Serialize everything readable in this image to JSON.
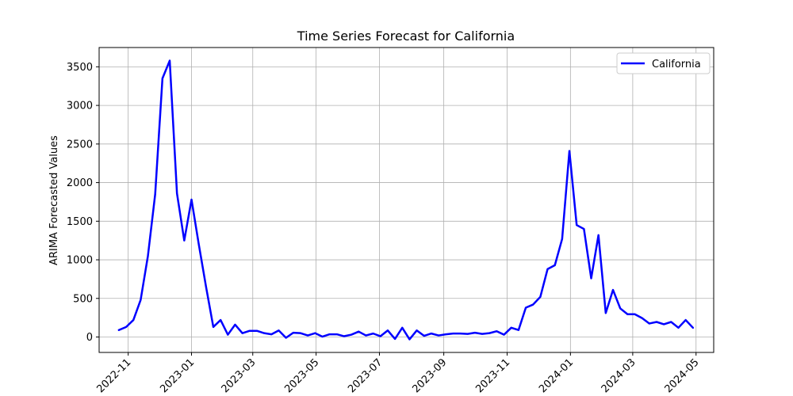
{
  "chart_data": {
    "type": "line",
    "title": "Time Series Forecast for California",
    "xlabel": "",
    "ylabel": "ARIMA Forecasted Values",
    "x_tick_labels": [
      "2022-11",
      "2023-01",
      "2023-03",
      "2023-05",
      "2023-07",
      "2023-09",
      "2023-11",
      "2024-01",
      "2024-03",
      "2024-05"
    ],
    "x_tick_dates": [
      "2022-11-01",
      "2023-01-01",
      "2023-03-01",
      "2023-05-01",
      "2023-07-01",
      "2023-09-01",
      "2023-11-01",
      "2024-01-01",
      "2024-03-01",
      "2024-05-01"
    ],
    "y_ticks": [
      0,
      500,
      1000,
      1500,
      2000,
      2500,
      3000,
      3500
    ],
    "xlim": [
      "2022-10-04",
      "2024-05-18"
    ],
    "ylim": [
      -200,
      3750
    ],
    "grid": true,
    "legend_position": "top-right",
    "series": [
      {
        "name": "California",
        "color": "#0000ff",
        "points": [
          [
            "2022-10-23",
            90
          ],
          [
            "2022-10-30",
            130
          ],
          [
            "2022-11-06",
            220
          ],
          [
            "2022-11-13",
            480
          ],
          [
            "2022-11-20",
            1050
          ],
          [
            "2022-11-27",
            1850
          ],
          [
            "2022-12-04",
            3350
          ],
          [
            "2022-12-11",
            3580
          ],
          [
            "2022-12-18",
            1860
          ],
          [
            "2022-12-25",
            1250
          ],
          [
            "2023-01-01",
            1780
          ],
          [
            "2023-01-08",
            1200
          ],
          [
            "2023-01-15",
            650
          ],
          [
            "2023-01-22",
            130
          ],
          [
            "2023-01-29",
            220
          ],
          [
            "2023-02-05",
            30
          ],
          [
            "2023-02-12",
            160
          ],
          [
            "2023-02-19",
            50
          ],
          [
            "2023-02-26",
            80
          ],
          [
            "2023-03-05",
            80
          ],
          [
            "2023-03-12",
            50
          ],
          [
            "2023-03-19",
            35
          ],
          [
            "2023-03-26",
            85
          ],
          [
            "2023-04-02",
            -10
          ],
          [
            "2023-04-09",
            55
          ],
          [
            "2023-04-16",
            50
          ],
          [
            "2023-04-23",
            20
          ],
          [
            "2023-04-30",
            50
          ],
          [
            "2023-05-07",
            5
          ],
          [
            "2023-05-14",
            35
          ],
          [
            "2023-05-21",
            35
          ],
          [
            "2023-05-28",
            10
          ],
          [
            "2023-06-04",
            30
          ],
          [
            "2023-06-11",
            70
          ],
          [
            "2023-06-18",
            20
          ],
          [
            "2023-06-25",
            45
          ],
          [
            "2023-07-02",
            10
          ],
          [
            "2023-07-09",
            85
          ],
          [
            "2023-07-16",
            -25
          ],
          [
            "2023-07-23",
            120
          ],
          [
            "2023-07-30",
            -30
          ],
          [
            "2023-08-06",
            85
          ],
          [
            "2023-08-13",
            15
          ],
          [
            "2023-08-20",
            45
          ],
          [
            "2023-08-27",
            20
          ],
          [
            "2023-09-03",
            35
          ],
          [
            "2023-09-10",
            45
          ],
          [
            "2023-09-17",
            45
          ],
          [
            "2023-09-24",
            40
          ],
          [
            "2023-10-01",
            55
          ],
          [
            "2023-10-08",
            40
          ],
          [
            "2023-10-15",
            50
          ],
          [
            "2023-10-22",
            75
          ],
          [
            "2023-10-29",
            30
          ],
          [
            "2023-11-05",
            120
          ],
          [
            "2023-11-12",
            90
          ],
          [
            "2023-11-19",
            380
          ],
          [
            "2023-11-26",
            420
          ],
          [
            "2023-12-03",
            520
          ],
          [
            "2023-12-10",
            880
          ],
          [
            "2023-12-17",
            930
          ],
          [
            "2023-12-24",
            1270
          ],
          [
            "2023-12-31",
            2410
          ],
          [
            "2024-01-07",
            1450
          ],
          [
            "2024-01-14",
            1400
          ],
          [
            "2024-01-21",
            760
          ],
          [
            "2024-01-28",
            1320
          ],
          [
            "2024-02-04",
            310
          ],
          [
            "2024-02-11",
            610
          ],
          [
            "2024-02-18",
            370
          ],
          [
            "2024-02-25",
            295
          ],
          [
            "2024-03-03",
            295
          ],
          [
            "2024-03-10",
            245
          ],
          [
            "2024-03-17",
            175
          ],
          [
            "2024-03-24",
            195
          ],
          [
            "2024-03-31",
            165
          ],
          [
            "2024-04-07",
            195
          ],
          [
            "2024-04-14",
            120
          ],
          [
            "2024-04-21",
            220
          ],
          [
            "2024-04-28",
            120
          ]
        ]
      }
    ]
  }
}
